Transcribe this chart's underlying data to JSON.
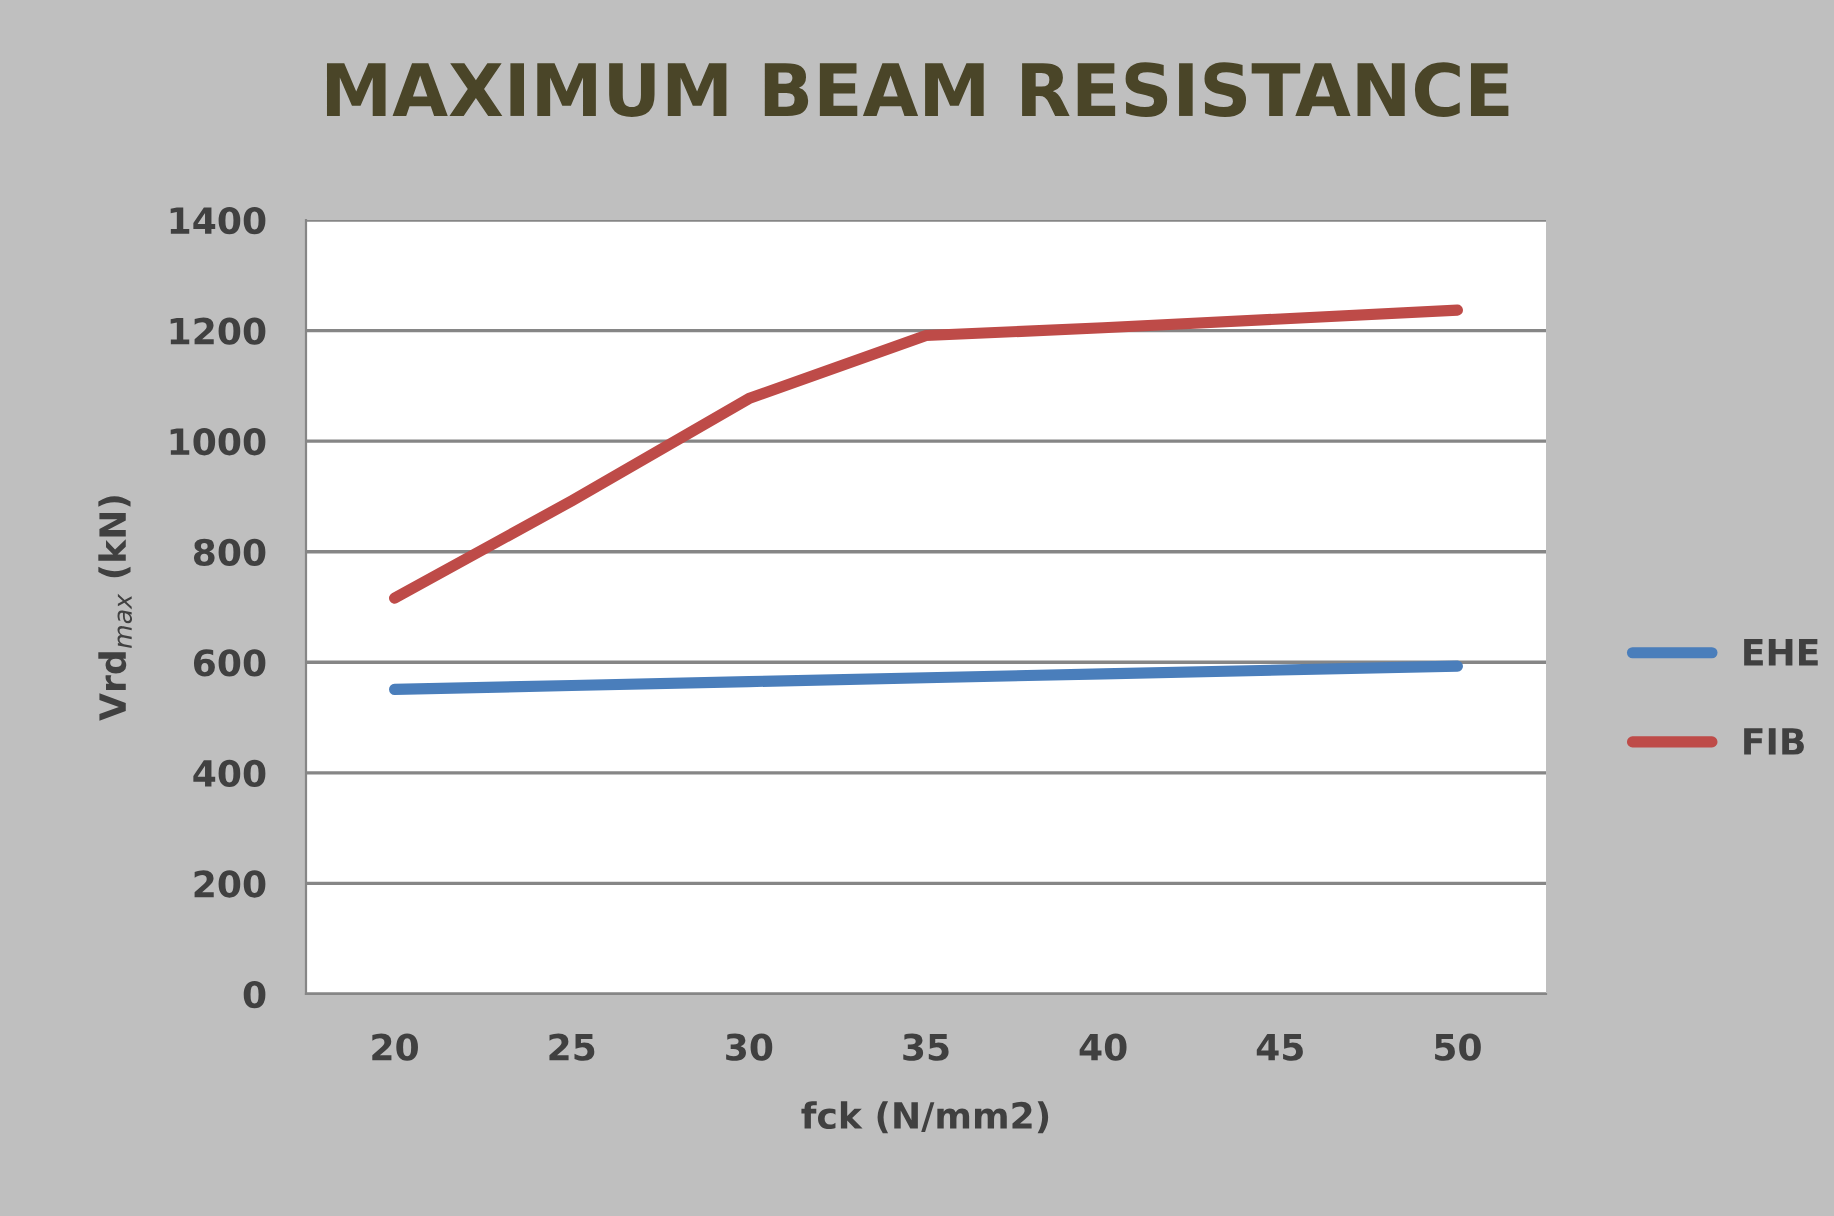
{
  "chart_data": {
    "type": "line",
    "title": "MAXIMUM BEAM RESISTANCE",
    "xlabel": "fck (N/mm2)",
    "ylabel": "Vrd$_{max}$ (kN)",
    "categories": [
      "20",
      "25",
      "30",
      "35",
      "40",
      "45",
      "50"
    ],
    "series": [
      {
        "name": "EHE",
        "color": "#4a7ebb",
        "values": [
          551,
          558,
          565,
          572,
          579,
          586,
          593
        ]
      },
      {
        "name": "FIB",
        "color": "#be4b48",
        "values": [
          716,
          892,
          1077,
          1191,
          1205,
          1221,
          1237
        ]
      }
    ],
    "ylim": [
      0,
      1400
    ],
    "yticks": [
      0,
      200,
      400,
      600,
      800,
      1000,
      1200,
      1400
    ],
    "grid": "y",
    "legend": "right",
    "marker": "none",
    "line_style": "solid"
  }
}
